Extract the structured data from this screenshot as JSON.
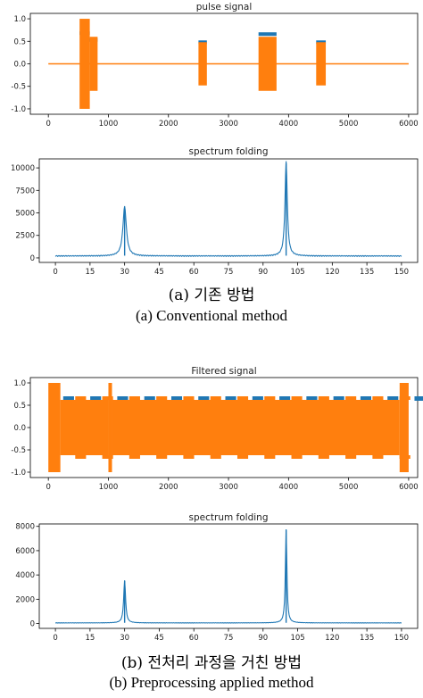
{
  "captions": {
    "a_korean": "(a) 기존 방법",
    "a_english": "(a) Conventional method",
    "b_korean": "(b) 전처리 과정을 거친 방법",
    "b_english": "(b) Preprocessing applied method"
  },
  "colors": {
    "blue": "#1f77b4",
    "orange": "#ff7f0e"
  },
  "chart_data": [
    {
      "id": "pulse",
      "type": "line",
      "title": "pulse signal",
      "xlim": [
        -300,
        6150
      ],
      "ylim": [
        -1.12,
        1.12
      ],
      "x_ticks": [
        0,
        1000,
        2000,
        3000,
        4000,
        5000,
        6000
      ],
      "y_ticks": [
        -1.0,
        -0.5,
        0.0,
        0.5,
        1.0
      ],
      "y_tick_labels": [
        "-1.0",
        "-0.5",
        "0.0",
        "0.5",
        "1.0"
      ],
      "series": [
        {
          "color": "#ff7f0e",
          "baseline": 0.0,
          "bursts": [
            {
              "x": [
                520,
                690
              ],
              "ymin": -1.0,
              "ymax": 1.0,
              "cap": 0.7
            },
            {
              "x": [
                690,
                820
              ],
              "ymin": -0.6,
              "ymax": 0.6,
              "cap": 0.55
            },
            {
              "x": [
                2500,
                2640
              ],
              "ymin": -0.48,
              "ymax": 0.48,
              "cap": 0.5
            },
            {
              "x": [
                3500,
                3800
              ],
              "ymin": -0.6,
              "ymax": 0.6,
              "cap": 0.68
            },
            {
              "x": [
                4460,
                4620
              ],
              "ymin": -0.48,
              "ymax": 0.48,
              "cap": 0.5
            }
          ]
        }
      ]
    },
    {
      "id": "spec1",
      "type": "line",
      "title": "spectrum folding",
      "xlim": [
        -7,
        157
      ],
      "ylim": [
        -500,
        11000
      ],
      "x_ticks": [
        0,
        15,
        30,
        45,
        60,
        75,
        90,
        105,
        120,
        135,
        150
      ],
      "y_ticks": [
        0,
        2500,
        5000,
        7500,
        10000
      ],
      "color": "#1f77b4",
      "peaks": [
        {
          "x": 30,
          "y": 5500,
          "w": 0.9
        },
        {
          "x": 100,
          "y": 10500,
          "w": 0.6
        }
      ],
      "noise_floor": 250
    },
    {
      "id": "filtered",
      "type": "line",
      "title": "Filtered signal",
      "xlim": [
        -300,
        6150
      ],
      "ylim": [
        -1.12,
        1.12
      ],
      "x_ticks": [
        0,
        1000,
        2000,
        3000,
        4000,
        5000,
        6000
      ],
      "y_ticks": [
        -1.0,
        -0.5,
        0.0,
        0.5,
        1.0
      ],
      "y_tick_labels": [
        "-1.0",
        "-0.5",
        "0.0",
        "0.5",
        "1.0"
      ],
      "segments": [
        {
          "x": [
            0,
            200
          ],
          "ymin": -1.0,
          "ymax": 1.0
        },
        {
          "x": [
            200,
            1000
          ],
          "ymin": -0.62,
          "ymax": 0.62
        },
        {
          "x": [
            1000,
            1060
          ],
          "ymin": -1.0,
          "ymax": 1.0
        },
        {
          "x": [
            1060,
            5850
          ],
          "ymin": -0.62,
          "ymax": 0.62
        },
        {
          "x": [
            5850,
            6000
          ],
          "ymin": -1.0,
          "ymax": 1.0
        }
      ],
      "period": 450
    },
    {
      "id": "spec2",
      "type": "line",
      "title": "spectrum folding",
      "xlim": [
        -7,
        157
      ],
      "ylim": [
        -400,
        8200
      ],
      "x_ticks": [
        0,
        15,
        30,
        45,
        60,
        75,
        90,
        105,
        120,
        135,
        150
      ],
      "y_ticks": [
        0,
        2000,
        4000,
        6000,
        8000
      ],
      "color": "#1f77b4",
      "peaks": [
        {
          "x": 30,
          "y": 3500,
          "w": 0.5
        },
        {
          "x": 100,
          "y": 7700,
          "w": 0.4
        }
      ],
      "noise_floor": 60
    }
  ]
}
